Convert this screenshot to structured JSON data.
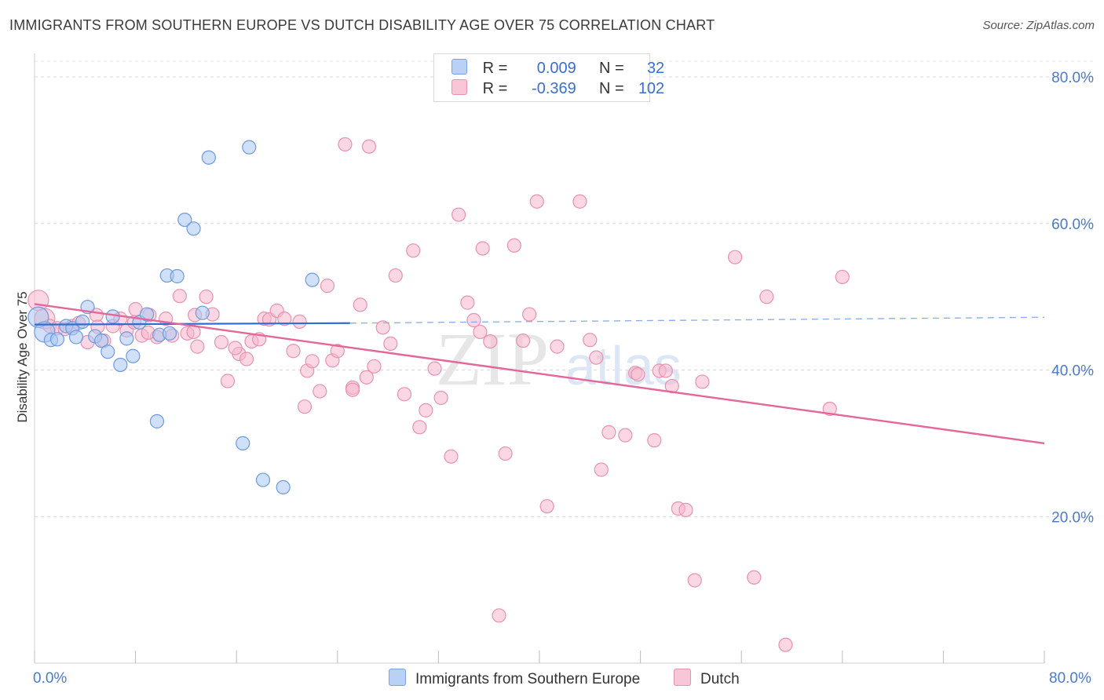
{
  "title": "IMMIGRANTS FROM SOUTHERN EUROPE VS DUTCH DISABILITY AGE OVER 75 CORRELATION CHART",
  "source": "Source: ZipAtlas.com",
  "watermark": {
    "zip": "ZIP",
    "atlas": "atlas"
  },
  "legend_top": {
    "rows": [
      {
        "r_label": "R =",
        "r_value": "0.009",
        "n_label": "N =",
        "n_value": "32"
      },
      {
        "r_label": "R =",
        "r_value": "-0.369",
        "n_label": "N =",
        "n_value": "102"
      }
    ]
  },
  "chart_data": {
    "type": "scatter",
    "ylabel": "Disability Age Over 75",
    "x_tick_labels": {
      "left": "0.0%",
      "right": "80.0%"
    },
    "y_tick_labels": [
      "20.0%",
      "40.0%",
      "60.0%",
      "80.0%"
    ],
    "y_tick_values": [
      20,
      40,
      60,
      80
    ],
    "xlim": [
      0,
      80
    ],
    "ylim": [
      0,
      83
    ],
    "grid": "horizontal dashed",
    "legend_placement": "bottom-center",
    "colors": {
      "blue": "#a9c6f2",
      "blue_stroke": "#6e9ae0",
      "blue_line": "#2f6fd0",
      "pink": "#f6b7cc",
      "pink_stroke": "#e892b0",
      "pink_line": "#e4679a"
    },
    "series": [
      {
        "name": "Immigrants from Southern Europe",
        "color": "blue",
        "trend": {
          "x0": 0,
          "y0": 46.2,
          "x1": 25,
          "y1": 46.4,
          "dash_x1": 80,
          "dash_y1": 47.2
        },
        "points": [
          [
            0.3,
            47.2
          ],
          [
            0.8,
            45.2
          ],
          [
            1.3,
            44.1
          ],
          [
            1.8,
            44.2
          ],
          [
            2.5,
            46.0
          ],
          [
            3.0,
            45.7
          ],
          [
            3.3,
            44.5
          ],
          [
            3.8,
            46.6
          ],
          [
            4.2,
            48.6
          ],
          [
            4.8,
            44.6
          ],
          [
            5.3,
            44.0
          ],
          [
            5.8,
            42.5
          ],
          [
            6.2,
            47.3
          ],
          [
            6.8,
            40.7
          ],
          [
            7.3,
            44.3
          ],
          [
            7.8,
            41.9
          ],
          [
            8.3,
            46.5
          ],
          [
            8.9,
            47.6
          ],
          [
            9.7,
            33.0
          ],
          [
            9.9,
            44.8
          ],
          [
            10.5,
            52.9
          ],
          [
            10.7,
            45.0
          ],
          [
            11.3,
            52.8
          ],
          [
            11.9,
            60.5
          ],
          [
            12.6,
            59.3
          ],
          [
            13.3,
            47.8
          ],
          [
            13.8,
            69.0
          ],
          [
            16.5,
            30.0
          ],
          [
            17.0,
            70.4
          ],
          [
            18.1,
            25.0
          ],
          [
            19.7,
            24.0
          ],
          [
            22.0,
            52.3
          ]
        ]
      },
      {
        "name": "Dutch",
        "color": "pink",
        "trend": {
          "x0": 0,
          "y0": 49.0,
          "x1": 80,
          "y1": 30.0
        },
        "points": [
          [
            0.3,
            49.5
          ],
          [
            0.8,
            47.0
          ],
          [
            1.2,
            46.0
          ],
          [
            1.8,
            45.7
          ],
          [
            2.4,
            45.6
          ],
          [
            3.0,
            46.0
          ],
          [
            3.5,
            46.4
          ],
          [
            4.2,
            43.8
          ],
          [
            4.9,
            47.5
          ],
          [
            5.5,
            44.0
          ],
          [
            6.2,
            46.0
          ],
          [
            6.8,
            47.0
          ],
          [
            7.3,
            45.4
          ],
          [
            8.0,
            48.3
          ],
          [
            8.5,
            44.7
          ],
          [
            9.1,
            47.5
          ],
          [
            9.7,
            44.5
          ],
          [
            10.4,
            47.0
          ],
          [
            10.9,
            44.7
          ],
          [
            11.5,
            50.1
          ],
          [
            12.1,
            45.0
          ],
          [
            12.6,
            45.2
          ],
          [
            12.9,
            43.2
          ],
          [
            13.6,
            50.0
          ],
          [
            14.1,
            47.6
          ],
          [
            14.8,
            43.8
          ],
          [
            15.3,
            38.5
          ],
          [
            16.2,
            42.2
          ],
          [
            16.8,
            41.5
          ],
          [
            17.2,
            43.9
          ],
          [
            17.8,
            44.2
          ],
          [
            18.2,
            47.0
          ],
          [
            18.6,
            46.9
          ],
          [
            19.2,
            48.1
          ],
          [
            19.8,
            47.0
          ],
          [
            20.5,
            42.6
          ],
          [
            21.0,
            46.6
          ],
          [
            21.6,
            39.9
          ],
          [
            22.0,
            41.2
          ],
          [
            22.6,
            37.1
          ],
          [
            23.2,
            51.5
          ],
          [
            23.6,
            41.3
          ],
          [
            24.0,
            42.6
          ],
          [
            24.6,
            70.8
          ],
          [
            25.2,
            37.6
          ],
          [
            25.8,
            48.9
          ],
          [
            26.3,
            39.0
          ],
          [
            26.9,
            40.5
          ],
          [
            27.6,
            45.8
          ],
          [
            28.2,
            43.6
          ],
          [
            28.6,
            52.9
          ],
          [
            29.3,
            36.7
          ],
          [
            30.0,
            56.3
          ],
          [
            30.5,
            32.2
          ],
          [
            31.0,
            34.5
          ],
          [
            31.7,
            40.2
          ],
          [
            32.2,
            36.2
          ],
          [
            33.0,
            28.2
          ],
          [
            33.6,
            61.2
          ],
          [
            34.3,
            49.2
          ],
          [
            34.8,
            46.8
          ],
          [
            35.5,
            56.6
          ],
          [
            36.1,
            43.9
          ],
          [
            37.3,
            28.6
          ],
          [
            38.0,
            57.0
          ],
          [
            38.7,
            44.0
          ],
          [
            39.2,
            47.6
          ],
          [
            39.8,
            63.0
          ],
          [
            40.6,
            21.4
          ],
          [
            41.4,
            43.2
          ],
          [
            43.2,
            63.0
          ],
          [
            44.0,
            44.1
          ],
          [
            44.5,
            41.7
          ],
          [
            44.9,
            26.4
          ],
          [
            45.5,
            31.5
          ],
          [
            46.8,
            31.1
          ],
          [
            47.6,
            39.6
          ],
          [
            47.8,
            39.4
          ],
          [
            49.1,
            30.4
          ],
          [
            49.5,
            39.9
          ],
          [
            50.0,
            39.9
          ],
          [
            50.5,
            37.8
          ],
          [
            51.0,
            21.1
          ],
          [
            51.6,
            20.9
          ],
          [
            52.3,
            11.3
          ],
          [
            52.9,
            38.4
          ],
          [
            55.5,
            55.4
          ],
          [
            57.0,
            11.7
          ],
          [
            58.0,
            50.0
          ],
          [
            59.5,
            2.5
          ],
          [
            63.0,
            34.7
          ],
          [
            64.0,
            52.7
          ],
          [
            36.8,
            6.5
          ],
          [
            25.2,
            37.3
          ],
          [
            21.4,
            35.0
          ],
          [
            15.9,
            43.0
          ],
          [
            26.5,
            70.5
          ],
          [
            35.3,
            45.2
          ],
          [
            7.9,
            46.5
          ],
          [
            5.0,
            45.9
          ],
          [
            9.0,
            45.1
          ],
          [
            12.7,
            47.5
          ]
        ]
      }
    ]
  }
}
